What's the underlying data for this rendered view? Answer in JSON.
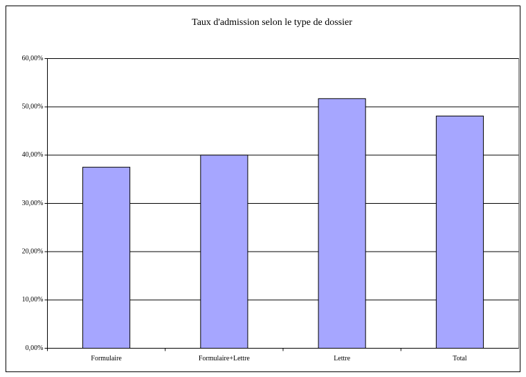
{
  "chart_data": {
    "type": "bar",
    "title": "Taux d'admission selon le type de dossier",
    "categories": [
      "Formulaire",
      "Formulaire+Lettre",
      "Lettre",
      "Total"
    ],
    "values": [
      37.5,
      40.0,
      51.7,
      48.1
    ],
    "color": "#a6a6ff",
    "ylim": [
      0,
      60
    ],
    "yticks": [
      {
        "value": 0,
        "label": "0,00%"
      },
      {
        "value": 10,
        "label": "10,00%"
      },
      {
        "value": 20,
        "label": "20,00%"
      },
      {
        "value": 30,
        "label": "30,00%"
      },
      {
        "value": 40,
        "label": "40,00%"
      },
      {
        "value": 50,
        "label": "50,00%"
      },
      {
        "value": 60,
        "label": "60,00%"
      }
    ],
    "grid": true
  }
}
